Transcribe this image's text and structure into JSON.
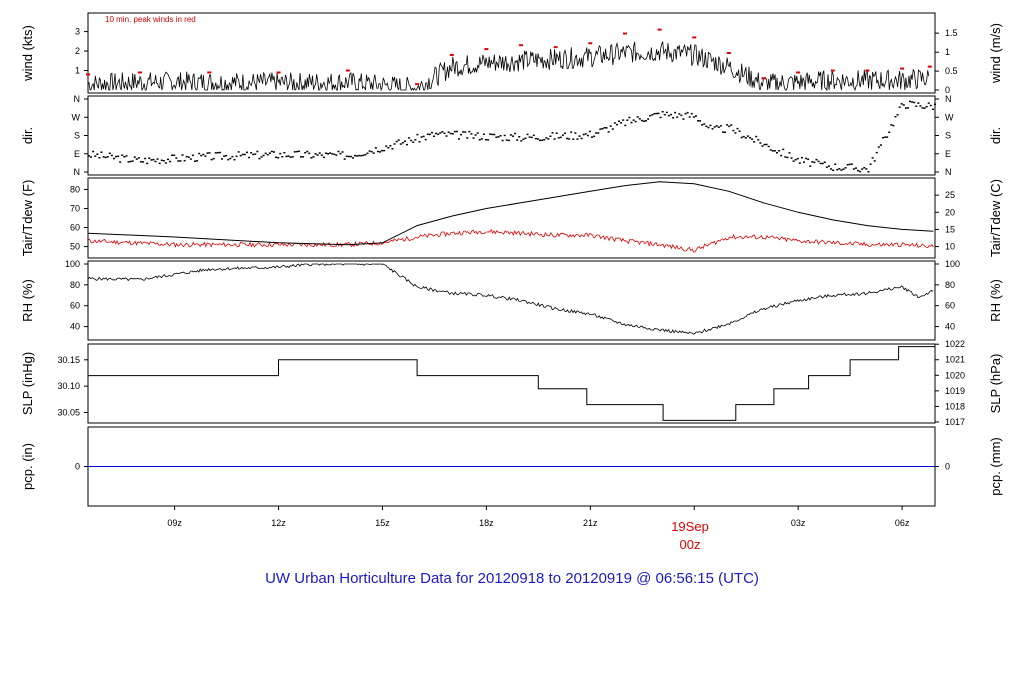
{
  "title": "UW Urban Horticulture Data for 20120918  to  20120919 @ 06:56:15  (UTC)",
  "x_axis": {
    "ticks": [
      "09z",
      "12z",
      "15z",
      "18z",
      "21z",
      "",
      "03z",
      "06z"
    ],
    "date_label": "19Sep",
    "date_sub": "00z"
  },
  "colors": {
    "main": "#000000",
    "peak": "#e00000",
    "dew": "#e00000",
    "precip": "#0000cc",
    "title": "#1a1acc"
  },
  "chart_data": [
    {
      "type": "line",
      "ylabel_left": "wind (kts)",
      "ylabel_right": "wind (m/s)",
      "annotation": "10 min. peak winds in red",
      "yticks_left": [
        "1",
        "2",
        "3"
      ],
      "yticks_right": [
        "0",
        "0.5",
        "1",
        "1.5"
      ],
      "ylim": [
        0,
        3.8
      ],
      "x_hours": [
        6.5,
        8,
        10,
        12,
        14,
        16,
        17,
        18,
        19,
        20,
        21,
        22,
        23,
        24,
        25,
        26,
        27,
        28,
        29,
        30,
        30.8
      ],
      "wind_mean": [
        0.3,
        0.4,
        0.4,
        0.35,
        0.4,
        0.1,
        1.2,
        1.4,
        1.5,
        1.6,
        1.7,
        1.9,
        2.0,
        1.8,
        1.2,
        0.3,
        0.4,
        0.5,
        0.5,
        0.5,
        0.6
      ],
      "peak_red": [
        0.8,
        0.9,
        0.9,
        0.9,
        1.0,
        0.3,
        1.8,
        2.1,
        2.3,
        2.2,
        2.4,
        2.9,
        3.1,
        2.7,
        1.9,
        0.6,
        0.9,
        1.0,
        1.0,
        1.1,
        1.2
      ]
    },
    {
      "type": "scatter",
      "ylabel": "dir.",
      "yticks": [
        "N",
        "E",
        "S",
        "W",
        "N"
      ],
      "x_hours": [
        6.5,
        8,
        10,
        12,
        14,
        16.5,
        18,
        19,
        20,
        21,
        22,
        23,
        24,
        24.5,
        25,
        27,
        28,
        29,
        30,
        30.8
      ],
      "direction_deg": [
        90,
        60,
        80,
        90,
        85,
        190,
        180,
        175,
        180,
        190,
        250,
        290,
        280,
        210,
        220,
        60,
        30,
        20,
        340,
        330
      ]
    },
    {
      "type": "line",
      "ylabel_left": "Tair/Tdew (F)",
      "ylabel_right": "Tair/Tdew (C)",
      "yticks_left": [
        "50",
        "60",
        "70",
        "80"
      ],
      "yticks_right": [
        "10",
        "15",
        "20",
        "25"
      ],
      "ylim": [
        44,
        86
      ],
      "x_hours": [
        6.5,
        9,
        12,
        14,
        15,
        16,
        17,
        18,
        19,
        20,
        21,
        22,
        23,
        24,
        25,
        26,
        27,
        28,
        29,
        30,
        30.9
      ],
      "series": [
        {
          "name": "Tair",
          "values": [
            57,
            55,
            52,
            51,
            52,
            61,
            66,
            70,
            73,
            76,
            79,
            82,
            84,
            83,
            79,
            73,
            68,
            64,
            61,
            59,
            58
          ]
        },
        {
          "name": "Tdew",
          "values": [
            53,
            51,
            51,
            51,
            52,
            55,
            57,
            58,
            57,
            56,
            56,
            53,
            51,
            48,
            55,
            55,
            53,
            52,
            51,
            51,
            50
          ]
        }
      ]
    },
    {
      "type": "line",
      "ylabel": "RH (%)",
      "yticks": [
        "40",
        "60",
        "80",
        "100"
      ],
      "ylim": [
        30,
        100
      ],
      "x_hours": [
        6.5,
        8,
        10,
        12,
        13,
        14,
        15,
        16,
        17,
        18,
        19,
        20,
        21,
        22,
        23,
        24,
        25,
        26,
        27,
        28,
        29,
        30,
        30.5,
        30.9
      ],
      "values": [
        86,
        85,
        95,
        97,
        100,
        100,
        100,
        78,
        72,
        70,
        65,
        57,
        52,
        42,
        37,
        33,
        43,
        57,
        65,
        70,
        72,
        78,
        68,
        75
      ]
    },
    {
      "type": "line",
      "ylabel_left": "SLP (inHg)",
      "ylabel_right": "SLP (hPa)",
      "yticks_left": [
        "30.05",
        "30.10",
        "30.15"
      ],
      "yticks_right": [
        "1017",
        "1018",
        "1019",
        "1020",
        "1021",
        "1022"
      ],
      "ylim": [
        30.03,
        30.18
      ],
      "steps": [
        {
          "from": 6.5,
          "to": 12,
          "value": 30.12
        },
        {
          "from": 12,
          "to": 16,
          "value": 30.15
        },
        {
          "from": 16,
          "to": 19.5,
          "value": 30.12
        },
        {
          "from": 19.5,
          "to": 20.9,
          "value": 30.095
        },
        {
          "from": 20.9,
          "to": 23.1,
          "value": 30.065
        },
        {
          "from": 23.1,
          "to": 25.2,
          "value": 30.035
        },
        {
          "from": 25.2,
          "to": 26.3,
          "value": 30.065
        },
        {
          "from": 26.3,
          "to": 27.3,
          "value": 30.095
        },
        {
          "from": 27.3,
          "to": 28.5,
          "value": 30.12
        },
        {
          "from": 28.5,
          "to": 29.9,
          "value": 30.15
        },
        {
          "from": 29.9,
          "to": 30.95,
          "value": 30.175
        }
      ]
    },
    {
      "type": "line",
      "ylabel_left": "pcp. (in)",
      "ylabel_right": "pcp. (mm)",
      "yticks_left": [
        "0"
      ],
      "yticks_right": [
        "0"
      ],
      "ylim": [
        -1,
        1
      ],
      "x_hours": [
        6.5,
        30.95
      ],
      "values": [
        0,
        0
      ]
    }
  ]
}
